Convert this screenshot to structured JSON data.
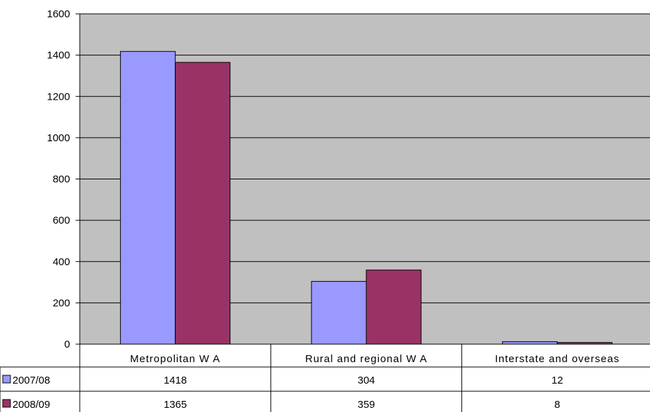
{
  "chart_data": {
    "type": "bar",
    "categories": [
      "Metropolitan W A",
      "Rural and regional W A",
      "Interstate and overseas"
    ],
    "series": [
      {
        "name": "2007/08",
        "values": [
          1418,
          304,
          12
        ],
        "color": "#9999ff",
        "labels": [
          "1418",
          "304",
          "12"
        ]
      },
      {
        "name": "2008/09",
        "values": [
          1365,
          359,
          8
        ],
        "color": "#993366",
        "labels": [
          "1365",
          "359",
          "8"
        ]
      }
    ],
    "ylim": [
      0,
      1600
    ],
    "y_ticks": [
      "0",
      "200",
      "400",
      "600",
      "800",
      "1000",
      "1200",
      "1400",
      "1600"
    ],
    "grid": true,
    "legend": "data-table",
    "plot_background": "#c0c0c0",
    "title": "",
    "xlabel": "",
    "ylabel": ""
  }
}
